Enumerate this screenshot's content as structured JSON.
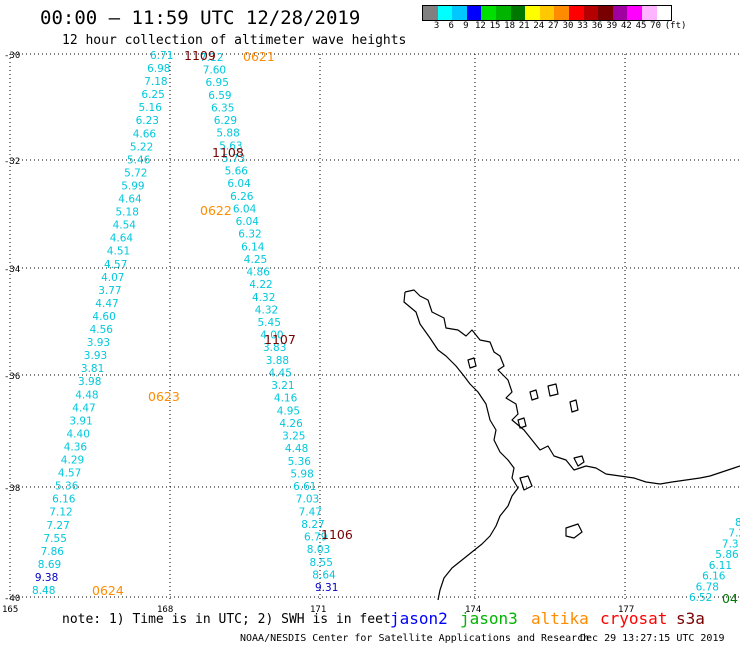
{
  "header": {
    "title": "00:00 – 11:59 UTC 12/28/2019",
    "subtitle": "12 hour collection of altimeter wave heights"
  },
  "legend": {
    "colors": [
      "#808080",
      "#00ffff",
      "#00c8ff",
      "#0000ff",
      "#00e000",
      "#00b400",
      "#007800",
      "#ffff00",
      "#ffc800",
      "#ff8c00",
      "#ff0000",
      "#b40000",
      "#780000",
      "#a000a0",
      "#ff00ff",
      "#ffb4ff",
      "#ffffff"
    ],
    "ticks": [
      "3",
      "6",
      "9",
      "12",
      "15",
      "18",
      "21",
      "24",
      "27",
      "30",
      "33",
      "36",
      "39",
      "42",
      "45",
      "70"
    ],
    "unit": "(ft)"
  },
  "axes": {
    "lat_labels": [
      "-30",
      "-32",
      "-34",
      "-36",
      "-38",
      "-40"
    ],
    "lon_labels": [
      "165",
      "168",
      "171",
      "174",
      "177"
    ]
  },
  "map": {
    "region": "North Island, New Zealand",
    "grid": "dotted",
    "coastline_color": "#000000",
    "sample_color": "#00c8dc",
    "high_sample_color": "#0000c8"
  },
  "tracks": [
    {
      "time": "1109",
      "color": "#780000"
    },
    {
      "time": "0621",
      "color": "#ff8c00"
    },
    {
      "time": "1108",
      "color": "#780000"
    },
    {
      "time": "0622",
      "color": "#ff8c00"
    },
    {
      "time": "1107",
      "color": "#780000"
    },
    {
      "time": "0623",
      "color": "#ff8c00"
    },
    {
      "time": "1106",
      "color": "#780000"
    },
    {
      "time": "0624",
      "color": "#ff8c00"
    },
    {
      "time": "04",
      "color": "#007800"
    }
  ],
  "observations": {
    "left": [
      "6.71",
      "6.98",
      "7.18",
      "6.25",
      "5.16",
      "6.23",
      "4.66",
      "5.22",
      "5.46",
      "5.72",
      "5.99",
      "4.64",
      "5.18",
      "4.54",
      "4.64",
      "4.51",
      "4.57",
      "4.07",
      "3.77",
      "4.47",
      "4.60",
      "4.56",
      "3.93",
      "3.93",
      "3.81",
      "3.98",
      "4.48",
      "4.47",
      "3.91",
      "4.40",
      "4.36",
      "4.29",
      "4.57",
      "5.36",
      "6.16",
      "7.12",
      "7.27",
      "7.55",
      "7.86",
      "8.69",
      "9.38",
      "8.48"
    ],
    "right": [
      "7.12",
      "7.60",
      "6.95",
      "6.59",
      "6.35",
      "6.29",
      "5.88",
      "5.63",
      "5.73",
      "5.66",
      "6.04",
      "6.26",
      "6.04",
      "6.04",
      "6.32",
      "6.14",
      "4.25",
      "4.86",
      "4.22",
      "4.32",
      "4.32",
      "5.45",
      "4.00",
      "3.83",
      "3.88",
      "4.45",
      "3.21",
      "4.16",
      "4.95",
      "4.26",
      "3.25",
      "4.48",
      "5.36",
      "5.98",
      "6.61",
      "7.03",
      "7.47",
      "8.27",
      "6.79",
      "8.03",
      "8.55",
      "8.64",
      "9.31"
    ],
    "east": [
      "8",
      "7.2",
      "7.3",
      "5.86",
      "6.11",
      "6.16",
      "6.78",
      "6.52"
    ]
  },
  "footer": {
    "note": "note: 1) Time is in UTC; 2) SWH is in feet",
    "missions": [
      {
        "name": "jason2",
        "color": "#0000ff"
      },
      {
        "name": "jason3",
        "color": "#00b400"
      },
      {
        "name": "altika",
        "color": "#ff8c00"
      },
      {
        "name": "cryosat",
        "color": "#ff0000"
      },
      {
        "name": "s3a",
        "color": "#780000"
      }
    ],
    "credit": "NOAA/NESDIS Center for Satellite Applications and Research",
    "timestamp": "Dec 29 13:27:15 UTC 2019"
  }
}
